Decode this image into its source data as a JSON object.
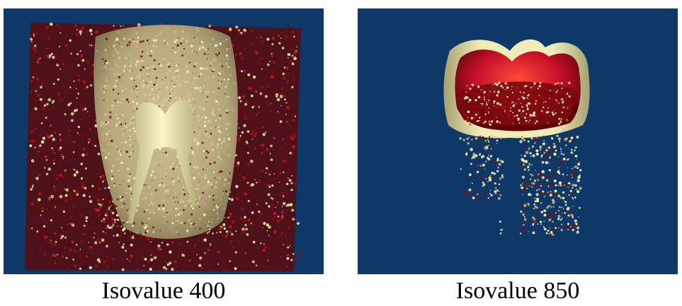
{
  "figure": {
    "panels": [
      {
        "caption": "Isovalue 400"
      },
      {
        "caption": "Isovalue 850"
      }
    ]
  },
  "colors": {
    "background": "#0d3867",
    "enamel": "#e7e1a6",
    "pulp": "#c8102a",
    "noise_red": "#8e1111",
    "noise_light": "#d9d29a"
  }
}
